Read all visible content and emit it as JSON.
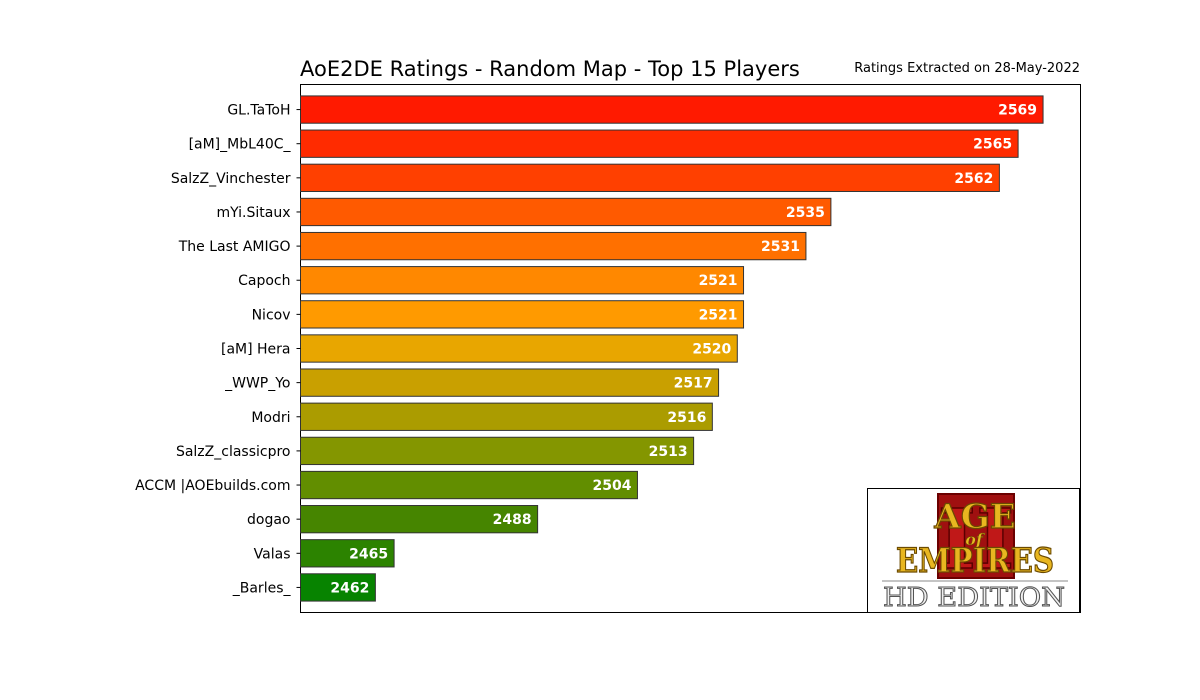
{
  "chart_data": {
    "type": "bar",
    "orientation": "horizontal",
    "title": "AoE2DE Ratings - Random Map - Top 15 Players",
    "subtitle": "Ratings Extracted on 28-May-2022",
    "categories": [
      "GL.TaToH",
      "[aM]_MbL40C_",
      "SalzZ_Vinchester",
      "mYi.Sitaux",
      "The Last AMIGO",
      "Capoch",
      "Nicov",
      "[aM] Hera",
      "_WWP_Yo",
      "Modri",
      "SalzZ_classicpro",
      "ACCM |AOEbuilds.com",
      "dogao",
      "Valas",
      "_Barles_"
    ],
    "values": [
      2569,
      2565,
      2562,
      2535,
      2531,
      2521,
      2521,
      2520,
      2517,
      2516,
      2513,
      2504,
      2488,
      2465,
      2462
    ],
    "colors": [
      "#ff1a00",
      "#ff2b00",
      "#ff4000",
      "#ff5a00",
      "#ff7000",
      "#ff8800",
      "#ff9a00",
      "#e8a600",
      "#c9a000",
      "#ab9c00",
      "#849600",
      "#628e00",
      "#468500",
      "#2c8300",
      "#078300"
    ],
    "xlim": [
      2450,
      2575
    ],
    "data_labels": [
      "2569",
      "2565",
      "2562",
      "2535",
      "2531",
      "2521",
      "2521",
      "2520",
      "2517",
      "2516",
      "2513",
      "2504",
      "2488",
      "2465",
      "2462"
    ],
    "grid": false,
    "x_ticks_visible": false,
    "legend": "none"
  },
  "logo": {
    "lines": [
      "AGE",
      "of",
      "EMPIRES",
      "II",
      "HD EDITION"
    ]
  }
}
